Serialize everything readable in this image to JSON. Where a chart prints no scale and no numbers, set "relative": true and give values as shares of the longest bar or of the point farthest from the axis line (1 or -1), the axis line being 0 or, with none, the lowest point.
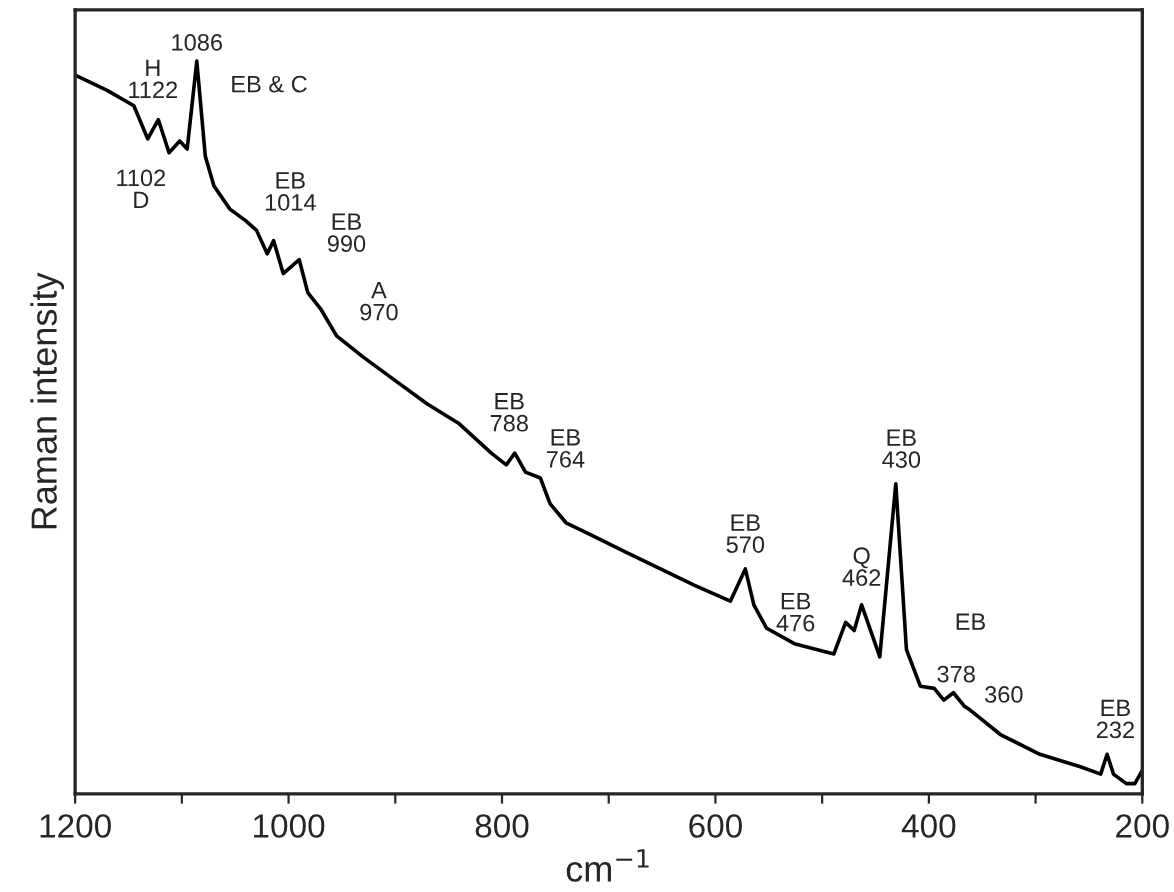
{
  "chart_data": {
    "type": "line",
    "relative": true,
    "xlabel": "cm$^{−1}$",
    "ylabel": "Raman intensity",
    "xlim": [
      1200,
      200
    ],
    "xticks": [
      1200,
      {
        "value": 1100,
        "label": null
      },
      1000,
      {
        "value": 900,
        "label": null
      },
      800,
      {
        "value": 700,
        "label": null
      },
      600,
      {
        "value": 500,
        "label": null
      },
      400,
      {
        "value": 300,
        "label": null
      },
      200
    ],
    "grid": false,
    "legend": false,
    "marker": "none",
    "line_style": "solid",
    "series": [
      {
        "color": "#000000",
        "x": [
          1200,
          1170,
          1145,
          1132,
          1122,
          1112,
          1102,
          1095,
          1086,
          1078,
          1070,
          1055,
          1040,
          1030,
          1020,
          1014,
          1005,
          990,
          982,
          970,
          955,
          930,
          900,
          870,
          840,
          810,
          796,
          788,
          778,
          764,
          755,
          740,
          720,
          684,
          620,
          586,
          572,
          564,
          552,
          526,
          489,
          478,
          470,
          463,
          446,
          431,
          421,
          408,
          395,
          386,
          377,
          367,
          361,
          333,
          296,
          258,
          239,
          233,
          227,
          215,
          207,
          200
        ],
        "values": [
          0.981,
          0.96,
          0.939,
          0.894,
          0.92,
          0.875,
          0.891,
          0.88,
          1.0,
          0.87,
          0.83,
          0.798,
          0.782,
          0.769,
          0.737,
          0.755,
          0.71,
          0.729,
          0.684,
          0.662,
          0.625,
          0.596,
          0.564,
          0.532,
          0.505,
          0.465,
          0.449,
          0.465,
          0.439,
          0.431,
          0.396,
          0.37,
          0.356,
          0.33,
          0.285,
          0.263,
          0.307,
          0.258,
          0.226,
          0.205,
          0.191,
          0.234,
          0.223,
          0.258,
          0.187,
          0.423,
          0.197,
          0.147,
          0.144,
          0.128,
          0.138,
          0.12,
          0.114,
          0.081,
          0.054,
          0.037,
          0.027,
          0.054,
          0.027,
          0.014,
          0.014,
          0.032
        ]
      }
    ],
    "annotations": [
      {
        "text": "H\n1122",
        "x": 1122,
        "y": 0.92
      },
      {
        "text": "1086",
        "x": 1086,
        "y": 1.0
      },
      {
        "text": "EB & C",
        "x": 1086,
        "y": 1.0
      },
      {
        "text": "1102\nD",
        "x": 1102,
        "y": 0.891
      },
      {
        "text": "EB\n1014",
        "x": 1014,
        "y": 0.755
      },
      {
        "text": "EB\n990",
        "x": 990,
        "y": 0.729
      },
      {
        "text": "A\n970",
        "x": 970,
        "y": 0.662
      },
      {
        "text": "EB\n788",
        "x": 788,
        "y": 0.465
      },
      {
        "text": "EB\n764",
        "x": 764,
        "y": 0.431
      },
      {
        "text": "EB\n570",
        "x": 572,
        "y": 0.307
      },
      {
        "text": "EB\n476",
        "x": 478,
        "y": 0.234
      },
      {
        "text": "Q\n462",
        "x": 463,
        "y": 0.258
      },
      {
        "text": "EB\n430",
        "x": 431,
        "y": 0.423
      },
      "EB",
      {
        "text": "378",
        "x": 377,
        "y": 0.138
      },
      {
        "text": "360",
        "x": 361,
        "y": 0.114
      },
      {
        "text": "EB\n232",
        "x": 233,
        "y": 0.054
      }
    ]
  }
}
